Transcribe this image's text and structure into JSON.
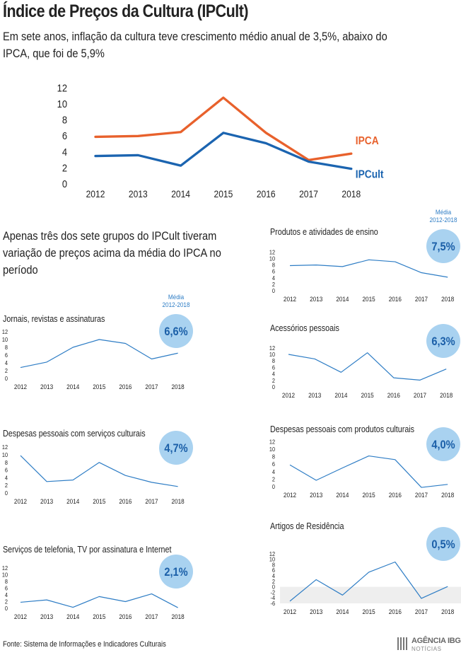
{
  "header": {
    "title": "Índice de Preços da Cultura (IPCult)",
    "subtitle": "Em sete anos, inflação da cultura teve crescimento médio anual de 3,5%, abaixo do IPCA, que foi de 5,9%"
  },
  "section_text": "Apenas três dos sete grupos do IPCult tiveram variação de preços acima da média do IPCA no período",
  "media_label_line1": "Média",
  "media_label_line2": "2012-2018",
  "footer": {
    "source": "Fonte: Sistema de Informações e Indicadores Culturais"
  },
  "logo": {
    "line1": "AGÊNCIA IBGE",
    "line2": "NOTÍCIAS"
  },
  "colors": {
    "ipca": "#E8612C",
    "ipcult": "#1B64B0",
    "small_line": "#2E7DC5",
    "badge_fill": "#A9D2F0",
    "badge_text": "#1B5FA8",
    "negative_band": "#EEEEEE"
  },
  "chart_data": [
    {
      "type": "line",
      "title": "",
      "categories": [
        "2012",
        "2013",
        "2014",
        "2015",
        "2016",
        "2017",
        "2018"
      ],
      "ylim": [
        0,
        12
      ],
      "yticks": [
        0,
        2,
        4,
        6,
        8,
        10,
        12
      ],
      "series": [
        {
          "name": "IPCA",
          "values": [
            5.8,
            5.9,
            6.4,
            10.7,
            6.3,
            2.9,
            3.7
          ]
        },
        {
          "name": "IPCult",
          "values": [
            3.4,
            3.5,
            2.2,
            6.3,
            5.0,
            2.7,
            1.8
          ]
        }
      ]
    },
    {
      "type": "line",
      "title": "Jornais, revistas e assinaturas",
      "media": "6,6%",
      "show_media_label": true,
      "categories": [
        "2012",
        "2013",
        "2014",
        "2015",
        "2016",
        "2017",
        "2018"
      ],
      "ylim": [
        0,
        12
      ],
      "yticks": [
        0,
        2,
        4,
        6,
        8,
        10,
        12
      ],
      "values": [
        2.8,
        4.2,
        8.0,
        10.0,
        9.0,
        5.0,
        6.5
      ]
    },
    {
      "type": "line",
      "title": "Produtos e atividades de ensino",
      "media": "7,5%",
      "show_media_label": true,
      "categories": [
        "2012",
        "2013",
        "2014",
        "2015",
        "2016",
        "2017",
        "2018"
      ],
      "ylim": [
        0,
        12
      ],
      "yticks": [
        0,
        2,
        4,
        6,
        8,
        10,
        12
      ],
      "values": [
        7.8,
        8.0,
        7.5,
        9.6,
        9.0,
        5.6,
        4.2
      ]
    },
    {
      "type": "line",
      "title": "Acessórios pessoais",
      "media": "6,3%",
      "show_media_label": false,
      "categories": [
        "2012",
        "2013",
        "2014",
        "2015",
        "2016",
        "2017",
        "2018"
      ],
      "ylim": [
        0,
        12
      ],
      "yticks": [
        0,
        2,
        4,
        6,
        8,
        10,
        12
      ],
      "values": [
        10.0,
        8.6,
        4.5,
        10.5,
        2.8,
        2.1,
        5.5
      ]
    },
    {
      "type": "line",
      "title": "Despesas pessoais com serviços culturais",
      "media": "4,7%",
      "show_media_label": false,
      "categories": [
        "2012",
        "2013",
        "2014",
        "2015",
        "2016",
        "2017",
        "2018"
      ],
      "ylim": [
        0,
        12
      ],
      "yticks": [
        0,
        2,
        4,
        6,
        8,
        10,
        12
      ],
      "values": [
        9.8,
        3.0,
        3.4,
        8.0,
        4.6,
        2.8,
        1.7
      ]
    },
    {
      "type": "line",
      "title": "Despesas pessoais com produtos culturais",
      "media": "4,0%",
      "show_media_label": false,
      "categories": [
        "2012",
        "2013",
        "2014",
        "2015",
        "2016",
        "2017",
        "2018"
      ],
      "ylim": [
        0,
        12
      ],
      "yticks": [
        0,
        2,
        4,
        6,
        8,
        10,
        12
      ],
      "values": [
        5.8,
        1.7,
        5.0,
        8.2,
        7.2,
        -0.2,
        0.6
      ]
    },
    {
      "type": "line",
      "title": "Serviços de telefonia, TV por assinatura e Internet",
      "media": "2,1%",
      "show_media_label": false,
      "categories": [
        "2012",
        "2013",
        "2014",
        "2015",
        "2016",
        "2017",
        "2018"
      ],
      "ylim": [
        0,
        12
      ],
      "yticks": [
        0,
        2,
        4,
        6,
        8,
        10,
        12
      ],
      "values": [
        1.8,
        2.5,
        0.3,
        3.5,
        2.0,
        4.3,
        0.2
      ]
    },
    {
      "type": "line",
      "title": "Artigos de Residência",
      "media": "0,5%",
      "show_media_label": false,
      "categories": [
        "2012",
        "2013",
        "2014",
        "2015",
        "2016",
        "2017",
        "2018"
      ],
      "ylim": [
        -6,
        12
      ],
      "yticks": [
        -6,
        -4,
        -2,
        0,
        2,
        4,
        6,
        8,
        10,
        12
      ],
      "values": [
        -5.2,
        2.6,
        -3.0,
        5.3,
        9.0,
        -4.2,
        0.1
      ]
    }
  ]
}
